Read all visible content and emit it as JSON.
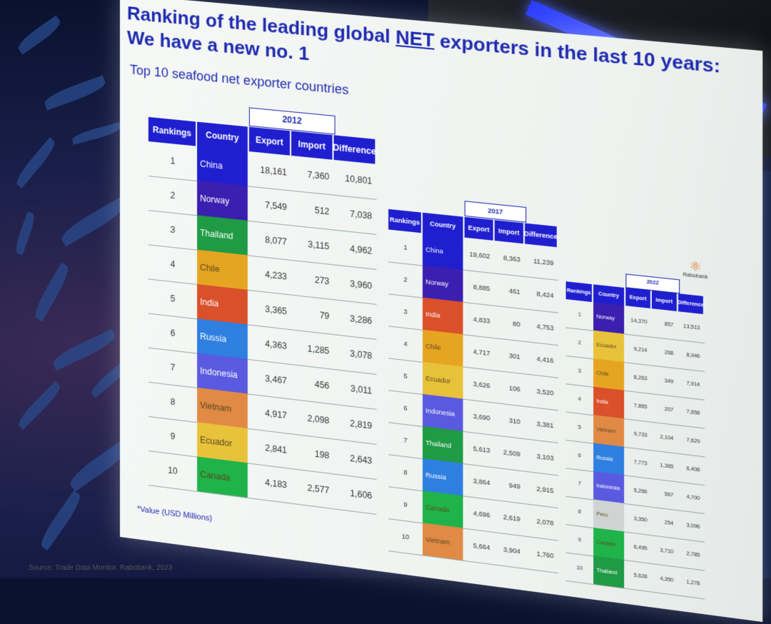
{
  "slide": {
    "title_part1": "Ranking of the leading global ",
    "title_underlined": "NET",
    "title_part2": " exporters in the last 10 years: We have a new no. 1",
    "subtitle": "Top 10 seafood net exporter countries",
    "footnote": "*Value (USD Millions)",
    "source": "Source: Trade Data Monitor, Rabobank, 2023",
    "logo_text": "Rabobank",
    "headers": {
      "rankings": "Rankings",
      "country": "Country",
      "export": "Export",
      "import": "Import",
      "difference": "Difference"
    }
  },
  "colors": {
    "China": "#1f1fd0",
    "Norway": "#3a1fb0",
    "Thailand": "#1f9a45",
    "Chile": "#e6a521",
    "India": "#d9502a",
    "Russia": "#2e7fe0",
    "Indonesia": "#5a5ae0",
    "Vietnam": "#e08a45",
    "Ecuador": "#e8c23a",
    "Canada": "#1fb34a",
    "Peru": "#cfd4d2"
  },
  "tables": [
    {
      "year": "2012",
      "rows": [
        {
          "rank": "1",
          "country": "China",
          "export": "18,161",
          "import": "7,360",
          "difference": "10,801"
        },
        {
          "rank": "2",
          "country": "Norway",
          "export": "7,549",
          "import": "512",
          "difference": "7,038"
        },
        {
          "rank": "3",
          "country": "Thailand",
          "export": "8,077",
          "import": "3,115",
          "difference": "4,962"
        },
        {
          "rank": "4",
          "country": "Chile",
          "export": "4,233",
          "import": "273",
          "difference": "3,960"
        },
        {
          "rank": "5",
          "country": "India",
          "export": "3,365",
          "import": "79",
          "difference": "3,286"
        },
        {
          "rank": "6",
          "country": "Russia",
          "export": "4,363",
          "import": "1,285",
          "difference": "3,078"
        },
        {
          "rank": "7",
          "country": "Indonesia",
          "export": "3,467",
          "import": "456",
          "difference": "3,011"
        },
        {
          "rank": "8",
          "country": "Vietnam",
          "export": "4,917",
          "import": "2,098",
          "difference": "2,819"
        },
        {
          "rank": "9",
          "country": "Ecuador",
          "export": "2,841",
          "import": "198",
          "difference": "2,643"
        },
        {
          "rank": "10",
          "country": "Canada",
          "export": "4,183",
          "import": "2,577",
          "difference": "1,606"
        }
      ]
    },
    {
      "year": "2017",
      "rows": [
        {
          "rank": "1",
          "country": "China",
          "export": "19,602",
          "import": "8,363",
          "difference": "11,239"
        },
        {
          "rank": "2",
          "country": "Norway",
          "export": "8,885",
          "import": "461",
          "difference": "8,424"
        },
        {
          "rank": "3",
          "country": "India",
          "export": "4,833",
          "import": "80",
          "difference": "4,753"
        },
        {
          "rank": "4",
          "country": "Chile",
          "export": "4,717",
          "import": "301",
          "difference": "4,416"
        },
        {
          "rank": "5",
          "country": "Ecuador",
          "export": "3,626",
          "import": "106",
          "difference": "3,520"
        },
        {
          "rank": "6",
          "country": "Indonesia",
          "export": "3,690",
          "import": "310",
          "difference": "3,381"
        },
        {
          "rank": "7",
          "country": "Thailand",
          "export": "5,613",
          "import": "2,509",
          "difference": "3,103"
        },
        {
          "rank": "8",
          "country": "Russia",
          "export": "3,864",
          "import": "949",
          "difference": "2,915"
        },
        {
          "rank": "9",
          "country": "Canada",
          "export": "4,696",
          "import": "2,619",
          "difference": "2,078"
        },
        {
          "rank": "10",
          "country": "Vietnam",
          "export": "5,664",
          "import": "3,904",
          "difference": "1,760"
        }
      ]
    },
    {
      "year": "2022",
      "rows": [
        {
          "rank": "1",
          "country": "Norway",
          "export": "14,370",
          "import": "857",
          "difference": "13,513"
        },
        {
          "rank": "2",
          "country": "Ecuador",
          "export": "9,214",
          "import": "268",
          "difference": "8,946"
        },
        {
          "rank": "3",
          "country": "Chile",
          "export": "8,263",
          "import": "349",
          "difference": "7,914"
        },
        {
          "rank": "4",
          "country": "India",
          "export": "7,865",
          "import": "207",
          "difference": "7,658"
        },
        {
          "rank": "5",
          "country": "Vietnam",
          "export": "9,733",
          "import": "2,104",
          "difference": "7,629"
        },
        {
          "rank": "6",
          "country": "Russia",
          "export": "7,773",
          "import": "1,365",
          "difference": "6,408"
        },
        {
          "rank": "7",
          "country": "Indonesia",
          "export": "5,266",
          "import": "567",
          "difference": "4,700"
        },
        {
          "rank": "8",
          "country": "Peru",
          "export": "3,350",
          "import": "254",
          "difference": "3,096"
        },
        {
          "rank": "9",
          "country": "Canada",
          "export": "6,495",
          "import": "3,710",
          "difference": "2,785"
        },
        {
          "rank": "10",
          "country": "Thailand",
          "export": "5,628",
          "import": "4,350",
          "difference": "1,278"
        }
      ]
    }
  ]
}
